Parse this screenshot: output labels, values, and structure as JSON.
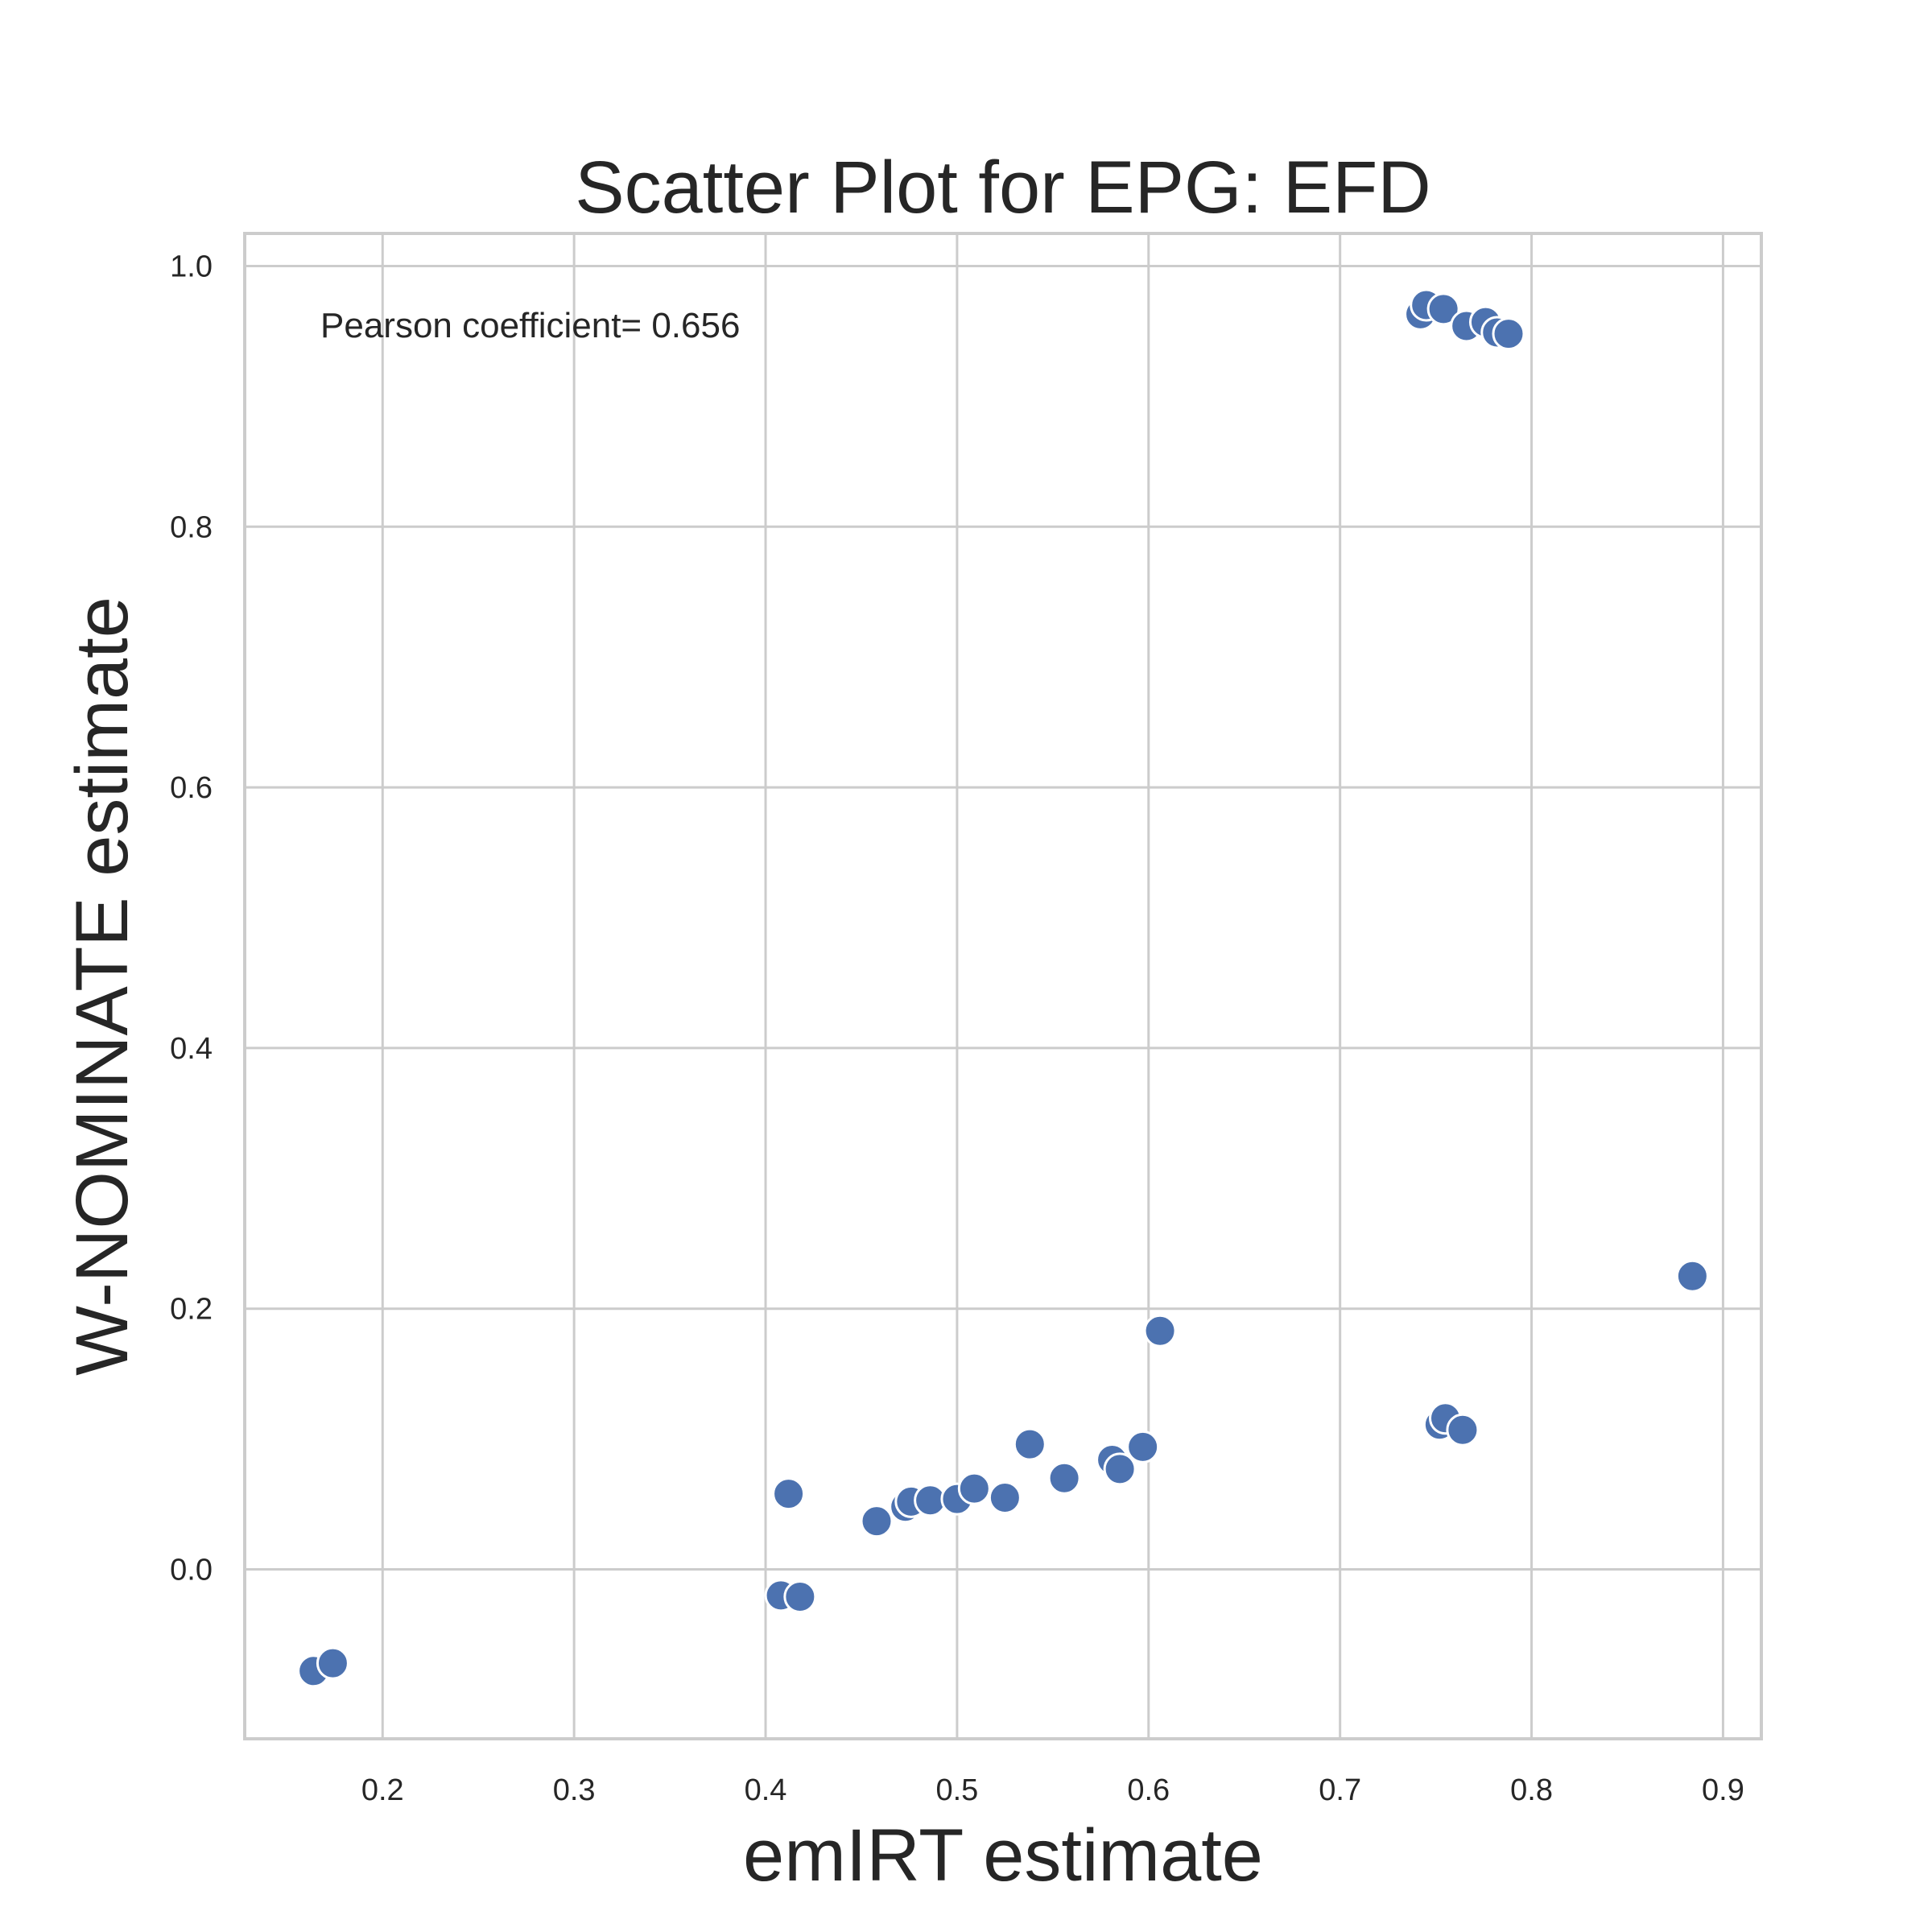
{
  "colors": {
    "point": "#4c72b0",
    "grid": "#cccccc",
    "text": "#262626",
    "background": "#ffffff"
  },
  "chart_data": {
    "type": "scatter",
    "title": "Scatter Plot for EPG: EFD",
    "xlabel": "emIRT estimate",
    "ylabel": "W-NOMINATE estimate",
    "xlim": [
      0.128,
      0.92
    ],
    "ylim": [
      -0.13,
      1.025
    ],
    "xticks": [
      "0.2",
      "0.3",
      "0.4",
      "0.5",
      "0.6",
      "0.7",
      "0.8",
      "0.9"
    ],
    "yticks": [
      "0.0",
      "0.2",
      "0.4",
      "0.6",
      "0.8",
      "1.0"
    ],
    "grid": true,
    "legend": "none",
    "annotation": "Pearson coefficient= 0.656",
    "series": [
      {
        "points": [
          [
            0.164,
            -0.078
          ],
          [
            0.174,
            -0.072
          ],
          [
            0.408,
            -0.02
          ],
          [
            0.418,
            -0.021
          ],
          [
            0.412,
            0.058
          ],
          [
            0.458,
            0.037
          ],
          [
            0.473,
            0.048
          ],
          [
            0.476,
            0.052
          ],
          [
            0.486,
            0.053
          ],
          [
            0.5,
            0.054
          ],
          [
            0.509,
            0.062
          ],
          [
            0.525,
            0.055
          ],
          [
            0.538,
            0.096
          ],
          [
            0.556,
            0.07
          ],
          [
            0.581,
            0.084
          ],
          [
            0.585,
            0.077
          ],
          [
            0.597,
            0.094
          ],
          [
            0.606,
            0.183
          ],
          [
            0.752,
            0.111
          ],
          [
            0.755,
            0.116
          ],
          [
            0.764,
            0.107
          ],
          [
            0.884,
            0.225
          ],
          [
            0.742,
            0.963
          ],
          [
            0.745,
            0.97
          ],
          [
            0.754,
            0.967
          ],
          [
            0.766,
            0.954
          ],
          [
            0.776,
            0.957
          ],
          [
            0.782,
            0.949
          ],
          [
            0.788,
            0.948
          ]
        ]
      }
    ]
  }
}
